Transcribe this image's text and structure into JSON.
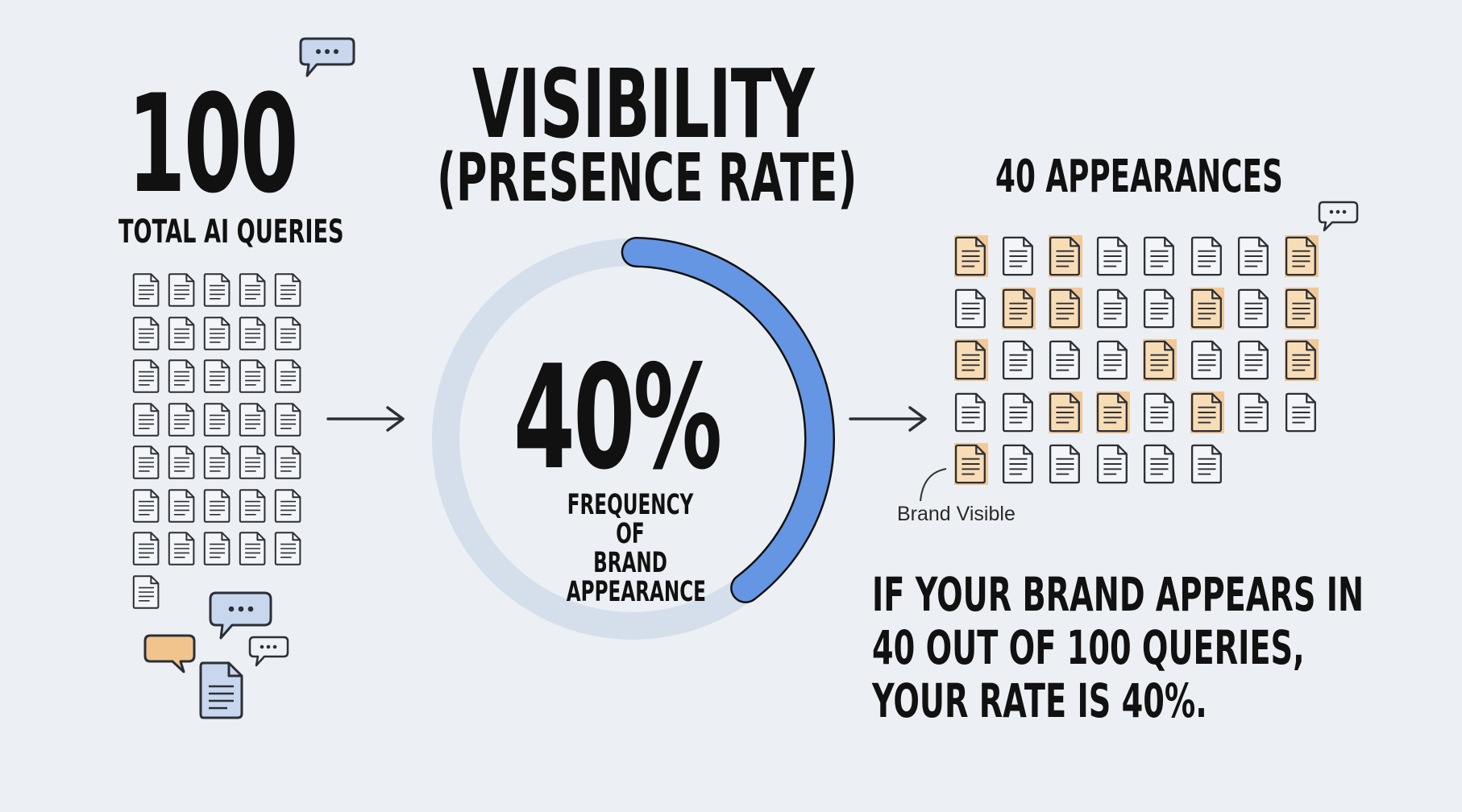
{
  "left": {
    "total": "100",
    "label": "TOTAL AI QUERIES"
  },
  "title": {
    "line1": "VISIBILITY",
    "line2": "(PRESENCE RATE)"
  },
  "center": {
    "percent": "40%",
    "subtitle_lines": [
      "FREQUENCY OF",
      "BRAND",
      "APPEARANCE"
    ],
    "progress": 0.4
  },
  "right": {
    "heading": "40 APPEARANCES",
    "legend_label": "Brand Visible",
    "caption_lines": [
      "IF YOUR BRAND APPEARS IN",
      "40 OUT OF 100 QUERIES,",
      "YOUR RATE IS 40%."
    ]
  },
  "colors": {
    "background": "#eceff3",
    "ring_track": "#d5deeb",
    "ring_progress": "#6496e4",
    "highlight_fill": "#f2c896",
    "doc_blue": "#c8d6ee",
    "bubble_orange": "#f0c48c"
  },
  "icons": {
    "document": "document-icon",
    "chat": "chat-bubble-icon",
    "arrow": "arrow-right-icon"
  },
  "right_grid": {
    "rows": [
      [
        1,
        0,
        1,
        0,
        0,
        0,
        0,
        1
      ],
      [
        0,
        1,
        1,
        0,
        0,
        1,
        0,
        1
      ],
      [
        1,
        0,
        0,
        0,
        1,
        0,
        0,
        1
      ],
      [
        0,
        0,
        1,
        1,
        0,
        1,
        0,
        0
      ],
      [
        1,
        0,
        0,
        0,
        0,
        0
      ]
    ]
  }
}
